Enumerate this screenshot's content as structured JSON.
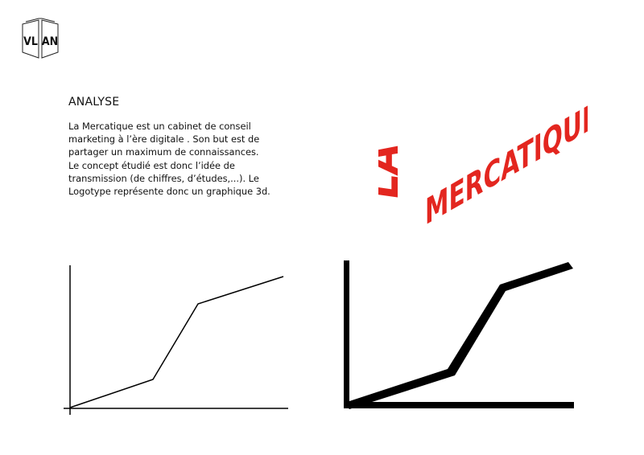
{
  "logo": {
    "text": "VL AN",
    "icon": "open-book-logo-icon"
  },
  "section": {
    "heading": "ANALYSE",
    "paragraph_lines": [
      "La Mercatique est un cabinet de conseil",
      "marketing à l’ère digitale . Son but est de",
      "partager un maximum de connaissances.",
      "Le concept étudié est donc l’idée de",
      "transmission (de chiffres, d’études,...). Le",
      "Logotype représente donc un graphique 3d."
    ]
  },
  "brand_mark": {
    "line1": "LA",
    "line2": "MERCATIQUE",
    "color": "#e3261f"
  },
  "charts": {
    "thin_line_style": {
      "stroke": "#000000"
    },
    "bold_line_style": {
      "stroke": "#000000"
    }
  }
}
